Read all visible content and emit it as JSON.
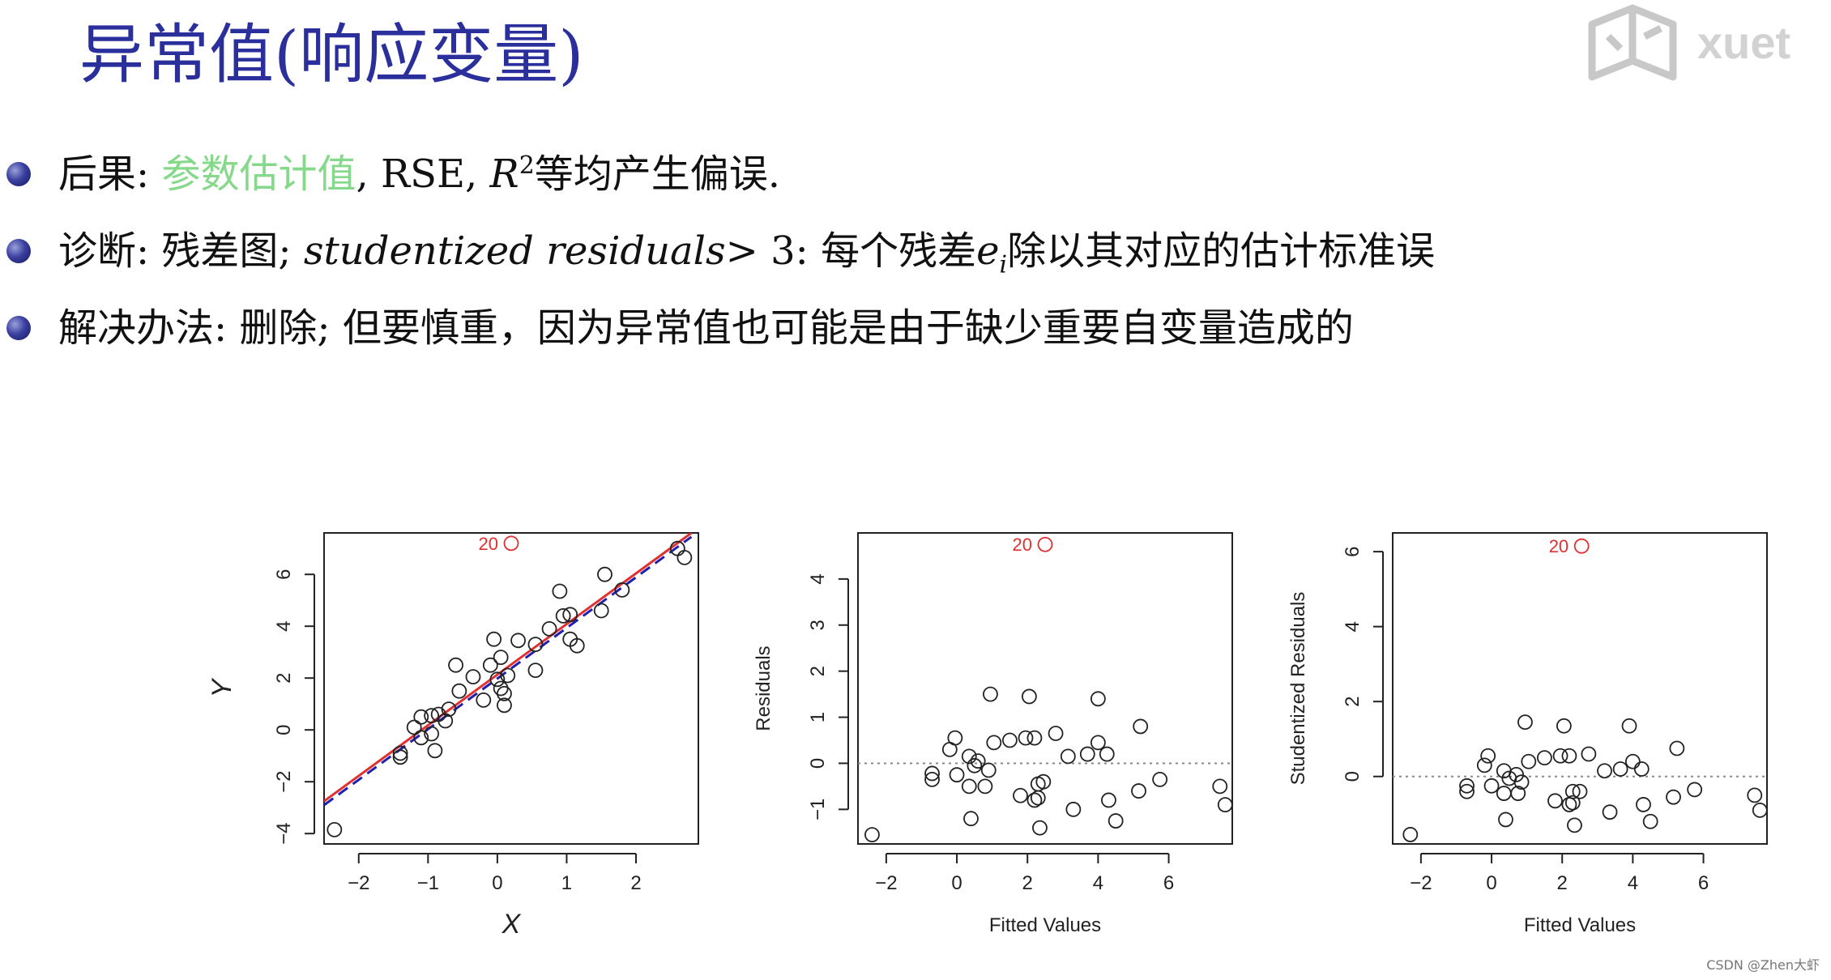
{
  "title": "异常值(响应变量)",
  "bullets": [
    {
      "label": "后果: ",
      "highlight": "参数估计值",
      "rest_a": ", RSE, ",
      "math": "R",
      "sup": "2",
      "rest_b": "等均产生偏误."
    },
    {
      "label": "诊断: 残差图; ",
      "math": "studentized residuals",
      "gt": "> 3: 每个残差",
      "math2": "e",
      "sub": "i",
      "rest": "除以其对应的估计标准误"
    },
    {
      "label": "解决办法: 删除; 但要慎重，因为异常值也可能是由于缺少重要自变量造成的"
    }
  ],
  "watermark_text": "xuet",
  "credit": "CSDN @Zhen大虾",
  "colors": {
    "title": "#2a2f9c",
    "highlight": "#86d98a",
    "outlier": "#e03030",
    "fit_red": "#e03030",
    "fit_blue": "#2020b0"
  },
  "chart_data": [
    {
      "type": "scatter",
      "xlabel": "X",
      "ylabel": "Y",
      "xlim": [
        -2.5,
        2.9
      ],
      "ylim": [
        -4.4,
        7.6
      ],
      "xticks": [
        -2,
        -1,
        0,
        1,
        2
      ],
      "yticks": [
        -4,
        -2,
        0,
        2,
        4,
        6
      ],
      "points": [
        [
          -2.35,
          -3.85
        ],
        [
          -1.4,
          -1.05
        ],
        [
          -1.4,
          -0.9
        ],
        [
          -1.2,
          0.1
        ],
        [
          -1.1,
          0.5
        ],
        [
          -1.1,
          -0.3
        ],
        [
          -0.95,
          0.55
        ],
        [
          -0.95,
          -0.15
        ],
        [
          -0.9,
          -0.8
        ],
        [
          -0.85,
          0.6
        ],
        [
          -0.75,
          0.35
        ],
        [
          -0.7,
          0.8
        ],
        [
          -0.6,
          2.5
        ],
        [
          -0.55,
          1.5
        ],
        [
          -0.35,
          2.05
        ],
        [
          -0.2,
          1.15
        ],
        [
          -0.1,
          2.5
        ],
        [
          -0.05,
          3.5
        ],
        [
          0.0,
          1.95
        ],
        [
          0.05,
          1.6
        ],
        [
          0.05,
          2.8
        ],
        [
          0.1,
          1.4
        ],
        [
          0.1,
          0.95
        ],
        [
          0.15,
          2.1
        ],
        [
          0.3,
          3.45
        ],
        [
          0.55,
          3.3
        ],
        [
          0.55,
          2.3
        ],
        [
          0.75,
          3.9
        ],
        [
          0.9,
          5.35
        ],
        [
          0.95,
          4.4
        ],
        [
          1.05,
          4.45
        ],
        [
          1.05,
          3.5
        ],
        [
          1.15,
          3.25
        ],
        [
          1.5,
          4.6
        ],
        [
          1.55,
          6.0
        ],
        [
          1.8,
          5.4
        ],
        [
          2.6,
          7.0
        ],
        [
          2.7,
          6.65
        ]
      ],
      "outlier": {
        "label": "20",
        "x": 0.2,
        "y": 7.2
      },
      "lines": [
        {
          "name": "fit_with_outlier",
          "color": "#e03030",
          "dash": false,
          "x": [
            -2.5,
            2.8
          ],
          "y": [
            -2.75,
            7.6
          ]
        },
        {
          "name": "fit_without_outlier",
          "color": "#2020b0",
          "dash": true,
          "x": [
            -2.5,
            2.8
          ],
          "y": [
            -2.9,
            7.45
          ]
        }
      ]
    },
    {
      "type": "scatter",
      "xlabel": "Fitted Values",
      "ylabel": "Residuals",
      "xlim": [
        -2.8,
        7.8
      ],
      "ylim": [
        -1.75,
        5.0
      ],
      "xticks": [
        -2,
        0,
        2,
        4,
        6
      ],
      "yticks": [
        -1,
        0,
        1,
        2,
        3,
        4
      ],
      "hline": 0,
      "points": [
        [
          -2.4,
          -1.55
        ],
        [
          -0.7,
          -0.35
        ],
        [
          -0.7,
          -0.22
        ],
        [
          -0.2,
          0.3
        ],
        [
          -0.05,
          0.55
        ],
        [
          0.0,
          -0.25
        ],
        [
          0.35,
          0.15
        ],
        [
          0.35,
          -0.5
        ],
        [
          0.4,
          -1.2
        ],
        [
          0.5,
          -0.05
        ],
        [
          0.6,
          0.05
        ],
        [
          0.8,
          -0.5
        ],
        [
          0.9,
          -0.15
        ],
        [
          0.95,
          1.5
        ],
        [
          1.05,
          0.45
        ],
        [
          1.5,
          0.5
        ],
        [
          1.8,
          -0.7
        ],
        [
          1.95,
          0.55
        ],
        [
          2.05,
          1.45
        ],
        [
          2.2,
          0.55
        ],
        [
          2.2,
          -0.8
        ],
        [
          2.3,
          -0.45
        ],
        [
          2.3,
          -0.75
        ],
        [
          2.35,
          -1.4
        ],
        [
          2.45,
          -0.4
        ],
        [
          2.8,
          0.65
        ],
        [
          3.15,
          0.15
        ],
        [
          3.3,
          -1.0
        ],
        [
          3.7,
          0.2
        ],
        [
          4.0,
          1.4
        ],
        [
          4.0,
          0.45
        ],
        [
          4.25,
          0.2
        ],
        [
          4.3,
          -0.8
        ],
        [
          4.5,
          -1.25
        ],
        [
          5.15,
          -0.6
        ],
        [
          5.2,
          0.8
        ],
        [
          5.75,
          -0.35
        ],
        [
          7.45,
          -0.5
        ],
        [
          7.6,
          -0.9
        ]
      ],
      "outlier": {
        "label": "20",
        "x": 2.5,
        "y": 4.75
      }
    },
    {
      "type": "scatter",
      "xlabel": "Fitted Values",
      "ylabel": "Studentized Residuals",
      "xlim": [
        -2.8,
        7.8
      ],
      "ylim": [
        -1.8,
        6.5
      ],
      "xticks": [
        -2,
        0,
        2,
        4,
        6
      ],
      "yticks": [
        0,
        2,
        4,
        6
      ],
      "hline": 0,
      "points": [
        [
          -2.3,
          -1.55
        ],
        [
          -0.7,
          -0.4
        ],
        [
          -0.7,
          -0.25
        ],
        [
          -0.2,
          0.3
        ],
        [
          -0.1,
          0.55
        ],
        [
          0.0,
          -0.25
        ],
        [
          0.35,
          0.15
        ],
        [
          0.35,
          -0.45
        ],
        [
          0.4,
          -1.15
        ],
        [
          0.5,
          -0.05
        ],
        [
          0.7,
          0.05
        ],
        [
          0.75,
          -0.45
        ],
        [
          0.85,
          -0.15
        ],
        [
          0.95,
          1.45
        ],
        [
          1.05,
          0.4
        ],
        [
          1.5,
          0.5
        ],
        [
          1.8,
          -0.65
        ],
        [
          1.95,
          0.55
        ],
        [
          2.05,
          1.35
        ],
        [
          2.2,
          0.55
        ],
        [
          2.2,
          -0.75
        ],
        [
          2.3,
          -0.4
        ],
        [
          2.3,
          -0.7
        ],
        [
          2.35,
          -1.3
        ],
        [
          2.5,
          -0.4
        ],
        [
          2.75,
          0.6
        ],
        [
          3.2,
          0.15
        ],
        [
          3.35,
          -0.95
        ],
        [
          3.65,
          0.2
        ],
        [
          3.9,
          1.35
        ],
        [
          4.0,
          0.4
        ],
        [
          4.25,
          0.2
        ],
        [
          4.3,
          -0.75
        ],
        [
          4.5,
          -1.2
        ],
        [
          5.15,
          -0.55
        ],
        [
          5.25,
          0.75
        ],
        [
          5.75,
          -0.35
        ],
        [
          7.45,
          -0.5
        ],
        [
          7.6,
          -0.9
        ]
      ],
      "outlier": {
        "label": "20",
        "x": 2.55,
        "y": 6.15
      }
    }
  ]
}
